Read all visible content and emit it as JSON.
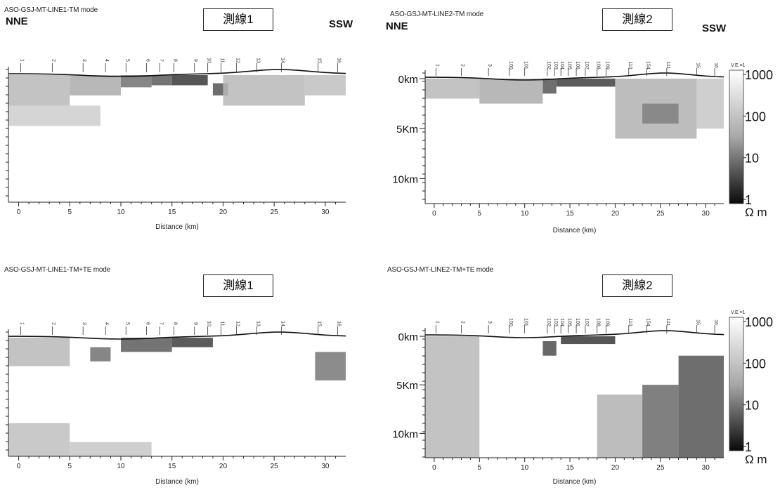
{
  "panels": [
    {
      "title": "ASO-GSJ-MT-LINE1-TM mode",
      "line_label": "測線1",
      "left_dir": "NNE",
      "right_dir": "SSW",
      "xlabel": "Distance (km)",
      "xticks": [
        0,
        5,
        10,
        15,
        20,
        25,
        30
      ],
      "depth_ticks": [],
      "stations": [
        "1",
        "2",
        "3",
        "4",
        "5",
        "6",
        "7",
        "8",
        "9",
        "10",
        "11",
        "12",
        "13",
        "14",
        "15",
        "16"
      ],
      "station_x": [
        0.2,
        3.3,
        6.3,
        8.5,
        10.5,
        12.5,
        13.8,
        15.2,
        17.2,
        18.5,
        19.8,
        21.3,
        23.3,
        25.7,
        29.3,
        31.2
      ]
    },
    {
      "title": "ASO-GSJ-MT-LINE2-TM mode",
      "line_label": "測線2",
      "left_dir": "NNE",
      "right_dir": "SSW",
      "xlabel": "Distance (km)",
      "xticks": [
        0,
        5,
        10,
        15,
        20,
        25,
        30
      ],
      "depth_ticks": [
        "0km",
        "5Km",
        "10km"
      ],
      "stations": [
        "1",
        "2",
        "3",
        "100",
        "101",
        "102",
        "103",
        "104",
        "105",
        "106",
        "107",
        "108",
        "109",
        "110",
        "154",
        "111",
        "15",
        "16"
      ],
      "station_x": [
        0.2,
        3,
        6,
        8.3,
        10,
        12.5,
        13.3,
        14,
        14.8,
        15.7,
        16.7,
        18,
        19,
        21.5,
        23.5,
        25.7,
        29,
        31
      ]
    },
    {
      "title": "ASO-GSJ-MT-LINE1-TM+TE mode",
      "line_label": "測線1",
      "xlabel": "Distance (km)",
      "xticks": [
        0,
        5,
        10,
        15,
        20,
        25,
        30
      ],
      "depth_ticks": [],
      "stations": [
        "1",
        "2",
        "3",
        "4",
        "5",
        "6",
        "7",
        "8",
        "9",
        "10",
        "11",
        "12",
        "13",
        "14",
        "15",
        "16"
      ],
      "station_x": [
        0.2,
        3.3,
        6.3,
        8.5,
        10.5,
        12.5,
        13.8,
        15.2,
        17.2,
        18.5,
        19.8,
        21.3,
        23.3,
        25.7,
        29.3,
        31.2
      ]
    },
    {
      "title": "ASO-GSJ-MT-LINE2-TM+TE mode",
      "line_label": "測線2",
      "xlabel": "Distance (km)",
      "xticks": [
        0,
        5,
        10,
        15,
        20,
        25,
        30
      ],
      "depth_ticks": [
        "0km",
        "5Km",
        "10km"
      ],
      "stations": [
        "1",
        "2",
        "3",
        "100",
        "101",
        "102",
        "103",
        "104",
        "105",
        "106",
        "107",
        "108",
        "109",
        "110",
        "154",
        "111",
        "15",
        "16"
      ],
      "station_x": [
        0.2,
        3,
        6,
        8.3,
        10,
        12.5,
        13.3,
        14,
        14.8,
        15.7,
        16.7,
        18,
        19,
        21.5,
        23.5,
        25.7,
        29,
        31
      ]
    }
  ],
  "colorbar": {
    "ve_label": "V.E.=1",
    "ticks": [
      "1000",
      "100",
      "10",
      "1"
    ],
    "unit": "Ω m"
  },
  "chart_data": [
    {
      "type": "heatmap",
      "title": "ASO-GSJ-MT-LINE1-TM mode",
      "xlabel": "Distance (km)",
      "x_range": [
        -1,
        32
      ],
      "colorbar_range_ohm_m": [
        1,
        1000
      ],
      "cells": [
        {
          "x0": -1,
          "x1": 5,
          "d0": 0,
          "d1": 3,
          "log_rho": 2.3
        },
        {
          "x0": 5,
          "x1": 10,
          "d0": 0,
          "d1": 2,
          "log_rho": 2.1
        },
        {
          "x0": 10,
          "x1": 13,
          "d0": 0,
          "d1": 1.2,
          "log_rho": 1.3
        },
        {
          "x0": 13,
          "x1": 15,
          "d0": 0,
          "d1": 1,
          "log_rho": 1.0
        },
        {
          "x0": 15,
          "x1": 18.5,
          "d0": 0,
          "d1": 1,
          "log_rho": 0.5
        },
        {
          "x0": 19,
          "x1": 20.5,
          "d0": 0.8,
          "d1": 2,
          "log_rho": 0.9
        },
        {
          "x0": 20,
          "x1": 28,
          "d0": 0,
          "d1": 3,
          "log_rho": 2.3
        },
        {
          "x0": 28,
          "x1": 32,
          "d0": 0,
          "d1": 2,
          "log_rho": 2.4
        },
        {
          "x0": -1,
          "x1": 8,
          "d0": 3,
          "d1": 5,
          "log_rho": 2.6
        }
      ]
    },
    {
      "type": "heatmap",
      "title": "ASO-GSJ-MT-LINE2-TM mode",
      "xlabel": "Distance (km)",
      "x_range": [
        -1,
        32
      ],
      "colorbar_range_ohm_m": [
        1,
        1000
      ],
      "cells": [
        {
          "x0": -1,
          "x1": 5,
          "d0": 0,
          "d1": 2,
          "log_rho": 2.3
        },
        {
          "x0": 5,
          "x1": 12,
          "d0": 0,
          "d1": 2.5,
          "log_rho": 2.1
        },
        {
          "x0": 12,
          "x1": 13.5,
          "d0": 0,
          "d1": 1.5,
          "log_rho": 0.9
        },
        {
          "x0": 13.5,
          "x1": 20,
          "d0": 0,
          "d1": 0.8,
          "log_rho": 0.6
        },
        {
          "x0": 20,
          "x1": 29,
          "d0": 0,
          "d1": 6,
          "log_rho": 2.2
        },
        {
          "x0": 23,
          "x1": 27,
          "d0": 2.5,
          "d1": 4.5,
          "log_rho": 1.5
        },
        {
          "x0": 29,
          "x1": 32,
          "d0": 0,
          "d1": 5,
          "log_rho": 2.5
        }
      ]
    },
    {
      "type": "heatmap",
      "title": "ASO-GSJ-MT-LINE1-TM+TE mode",
      "xlabel": "Distance (km)",
      "x_range": [
        -1,
        32
      ],
      "colorbar_range_ohm_m": [
        1,
        1000
      ],
      "cells": [
        {
          "x0": -1,
          "x1": 5,
          "d0": 0,
          "d1": 3,
          "log_rho": 2.3
        },
        {
          "x0": 7,
          "x1": 9,
          "d0": 1,
          "d1": 2.5,
          "log_rho": 1.3
        },
        {
          "x0": 10,
          "x1": 15,
          "d0": 0,
          "d1": 1.5,
          "log_rho": 1.0
        },
        {
          "x0": 15,
          "x1": 19,
          "d0": 0,
          "d1": 1,
          "log_rho": 0.6
        },
        {
          "x0": 29,
          "x1": 32,
          "d0": 1.5,
          "d1": 4.5,
          "log_rho": 1.4
        },
        {
          "x0": -1,
          "x1": 5,
          "d0": 9,
          "d1": 12.5,
          "log_rho": 2.4
        },
        {
          "x0": 5,
          "x1": 13,
          "d0": 11,
          "d1": 12.5,
          "log_rho": 2.5
        }
      ]
    },
    {
      "type": "heatmap",
      "title": "ASO-GSJ-MT-LINE2-TM+TE mode",
      "xlabel": "Distance (km)",
      "x_range": [
        -1,
        32
      ],
      "colorbar_range_ohm_m": [
        1,
        1000
      ],
      "cells": [
        {
          "x0": -1,
          "x1": 5,
          "d0": 0,
          "d1": 12.5,
          "log_rho": 2.3
        },
        {
          "x0": 12,
          "x1": 13.5,
          "d0": 0.5,
          "d1": 2,
          "log_rho": 0.8
        },
        {
          "x0": 14,
          "x1": 20,
          "d0": 0,
          "d1": 0.8,
          "log_rho": 0.5
        },
        {
          "x0": 18,
          "x1": 23,
          "d0": 6,
          "d1": 12.5,
          "log_rho": 2.2
        },
        {
          "x0": 23,
          "x1": 27,
          "d0": 5,
          "d1": 12.5,
          "log_rho": 1.2
        },
        {
          "x0": 27,
          "x1": 32,
          "d0": 2,
          "d1": 12.5,
          "log_rho": 0.9
        }
      ]
    }
  ]
}
